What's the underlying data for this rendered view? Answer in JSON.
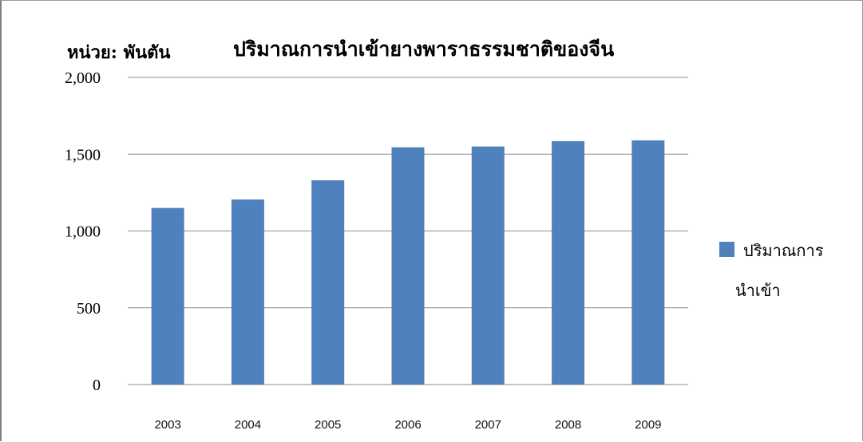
{
  "chart_data": {
    "type": "bar",
    "unit_label": "หน่วย: พันตัน",
    "title": "ปริมาณการนำเข้ายางพาราธรรมชาติของจีน",
    "categories": [
      "2003",
      "2004",
      "2005",
      "2006",
      "2007",
      "2008",
      "2009"
    ],
    "series": [
      {
        "name_lines": [
          "ปริมาณการ",
          "นำเข้า"
        ],
        "values": [
          1150,
          1205,
          1330,
          1545,
          1550,
          1585,
          1590
        ],
        "color": "#4f81bd"
      }
    ],
    "ylim": [
      0,
      2000
    ],
    "yticks": [
      0,
      500,
      1000,
      1500,
      2000
    ],
    "ytick_labels": [
      "0",
      "500",
      "1,000",
      "1,500",
      "2,000"
    ],
    "grid": true,
    "legend_position": "right"
  }
}
